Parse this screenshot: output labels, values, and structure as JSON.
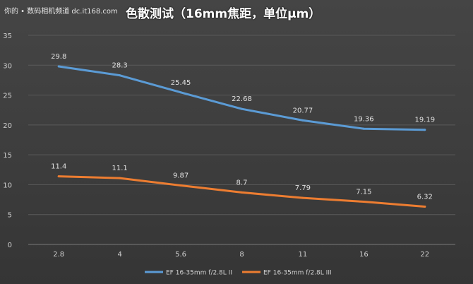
{
  "watermark": "你的 • 数码相机频道 dc.it168.com",
  "chart_data": {
    "type": "line",
    "title": "色散测试（16mm焦距，单位μm）",
    "xlabel": "",
    "ylabel": "",
    "categories": [
      "2.8",
      "4",
      "5.6",
      "8",
      "11",
      "16",
      "22"
    ],
    "yticks": [
      0,
      5,
      10,
      15,
      20,
      25,
      30,
      35
    ],
    "ylim": [
      0,
      35
    ],
    "grid": true,
    "legend_position": "bottom",
    "series": [
      {
        "name": "EF 16-35mm f/2.8L II",
        "color": "#5b9bd5",
        "values": [
          29.8,
          28.3,
          25.45,
          22.68,
          20.77,
          19.36,
          19.19
        ],
        "labels": [
          "29.8",
          "28.3",
          "25.45",
          "22.68",
          "20.77",
          "19.36",
          "19.19"
        ]
      },
      {
        "name": "EF 16-35mm f/2.8L III",
        "color": "#ed7d31",
        "values": [
          11.4,
          11.1,
          9.87,
          8.7,
          7.79,
          7.15,
          6.32
        ],
        "labels": [
          "11.4",
          "11.1",
          "9.87",
          "8.7",
          "7.79",
          "7.15",
          "6.32"
        ]
      }
    ]
  }
}
